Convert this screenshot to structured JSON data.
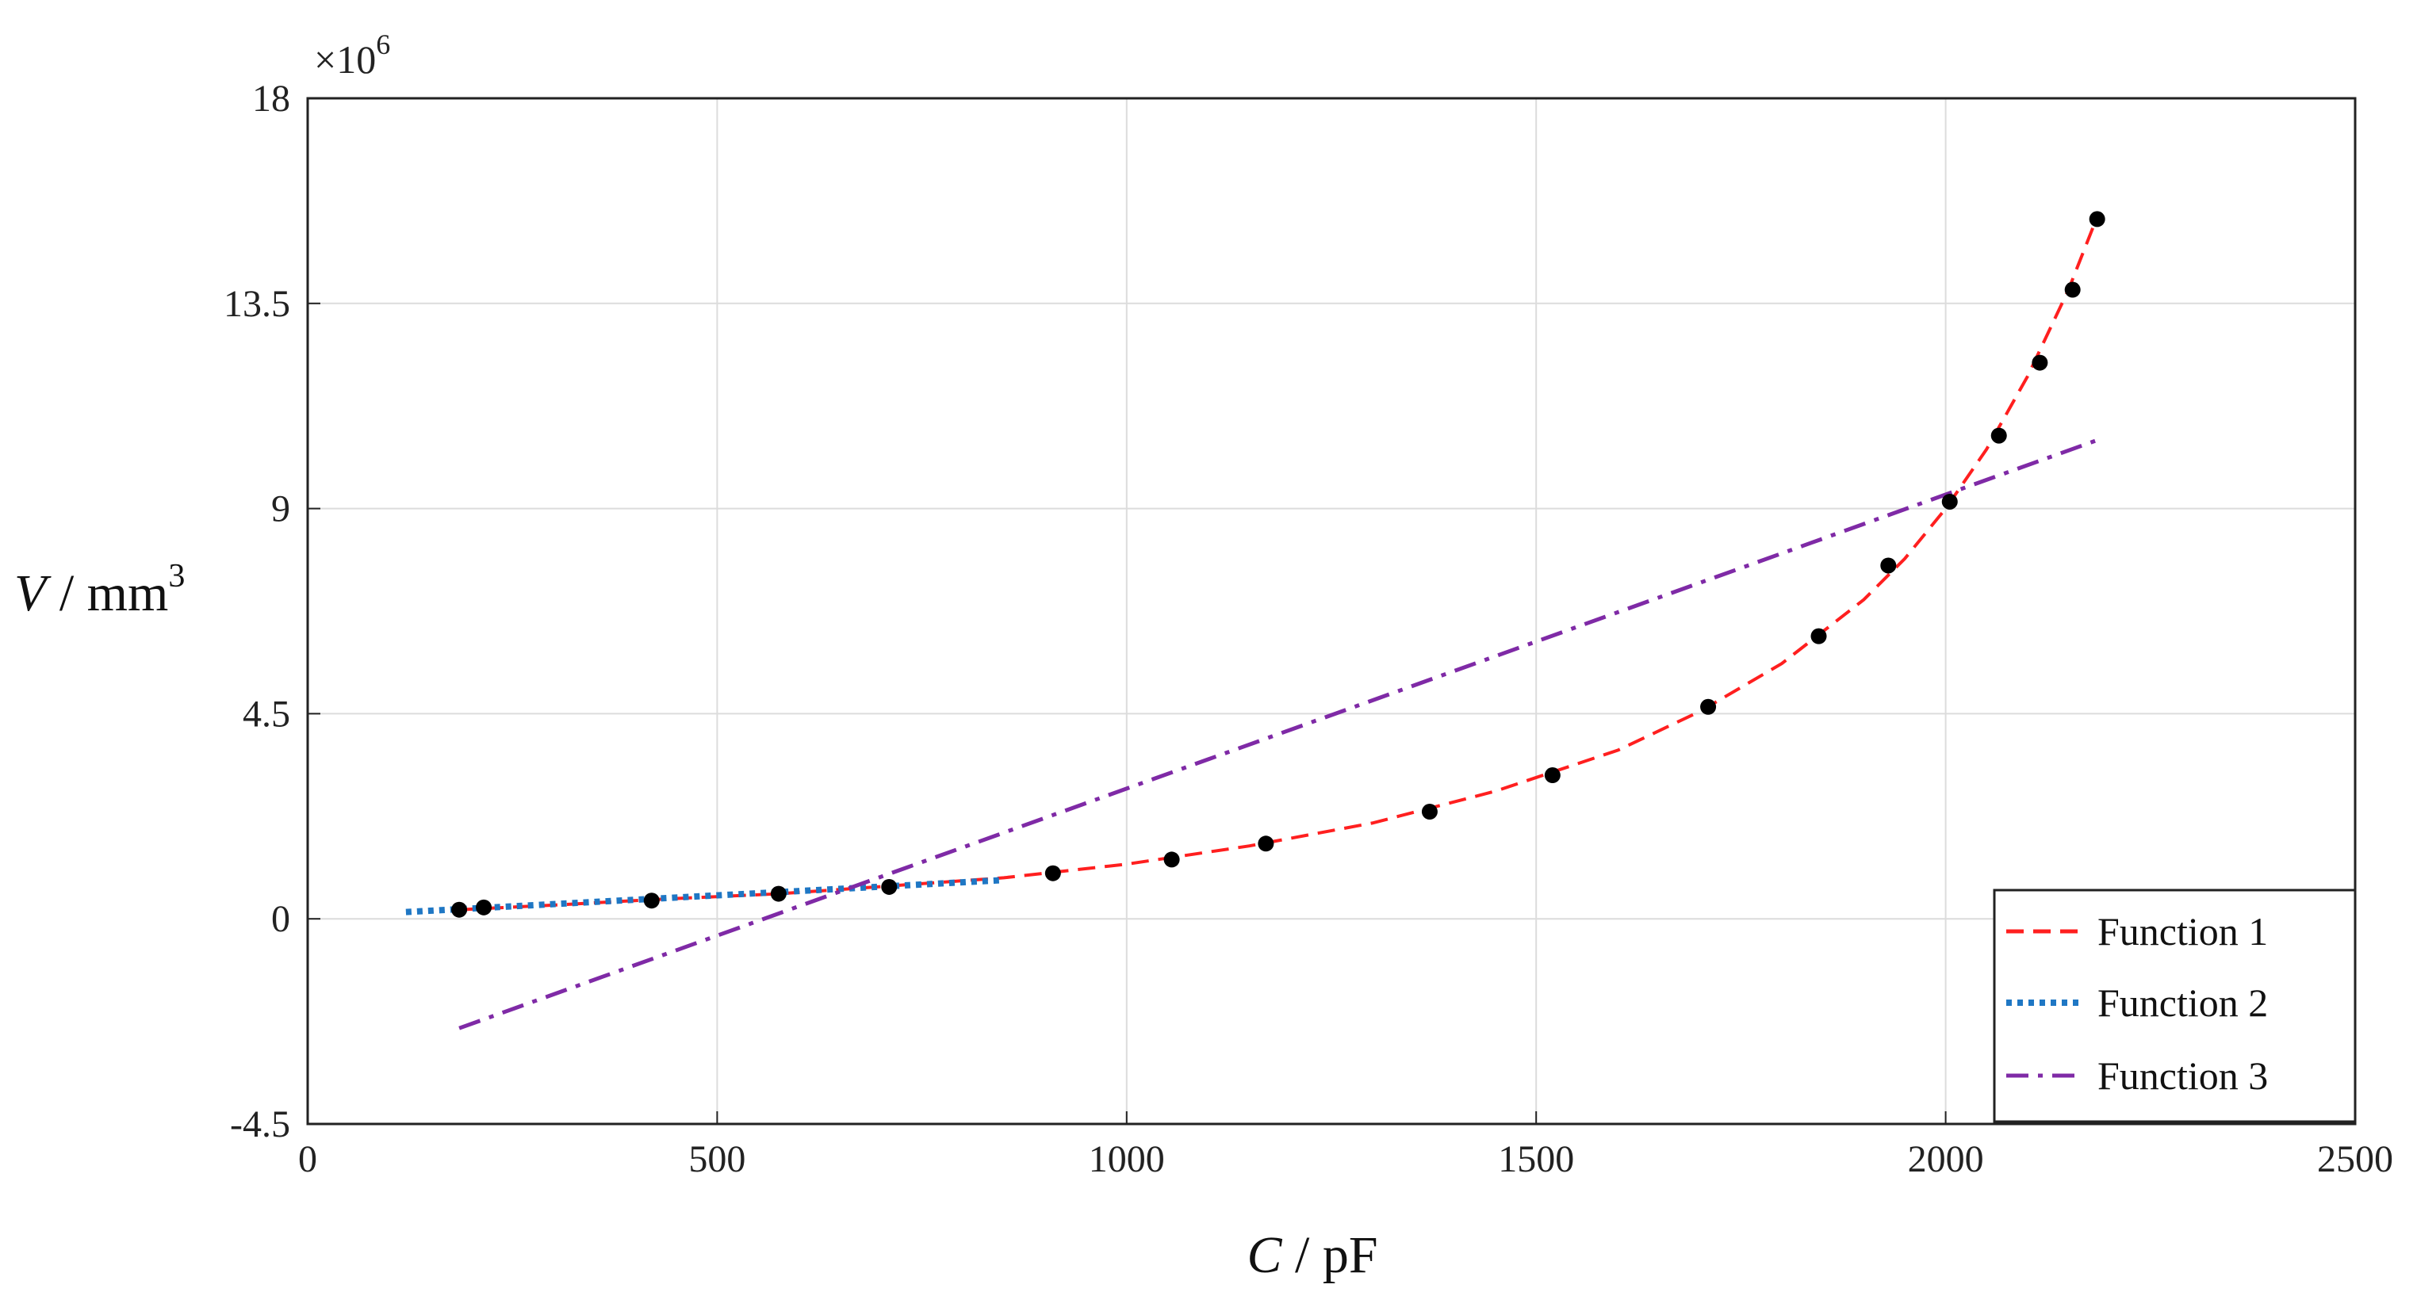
{
  "chart_data": {
    "type": "line",
    "xlabel": {
      "var": "C",
      "unit": " / pF"
    },
    "ylabel": {
      "var": "V",
      "unit": " / mm",
      "unit_sup": "3"
    },
    "y_multiplier": {
      "base": "×10",
      "exp": "6"
    },
    "xlim": [
      0,
      2500
    ],
    "ylim": [
      -4.5,
      18
    ],
    "x_ticks": [
      {
        "value": 0,
        "label": "0"
      },
      {
        "value": 500,
        "label": "500"
      },
      {
        "value": 1000,
        "label": "1000"
      },
      {
        "value": 1500,
        "label": "1500"
      },
      {
        "value": 2000,
        "label": "2000"
      },
      {
        "value": 2500,
        "label": "2500"
      }
    ],
    "y_ticks": [
      {
        "value": -4.5,
        "label": "-4.5"
      },
      {
        "value": 0,
        "label": "0"
      },
      {
        "value": 4.5,
        "label": "4.5"
      },
      {
        "value": 9,
        "label": "9"
      },
      {
        "value": 13.5,
        "label": "13.5"
      },
      {
        "value": 18,
        "label": "18"
      }
    ],
    "grid": true,
    "legend_position": "bottom-right",
    "points": {
      "color": "#000000",
      "x": [
        185,
        215,
        420,
        575,
        710,
        910,
        1055,
        1170,
        1370,
        1520,
        1710,
        1845,
        1930,
        2005,
        2065,
        2115,
        2155,
        2185
      ],
      "y": [
        0.2,
        0.25,
        0.4,
        0.55,
        0.7,
        1.0,
        1.3,
        1.65,
        2.35,
        3.15,
        4.65,
        6.2,
        7.75,
        9.15,
        10.6,
        12.2,
        13.8,
        15.35
      ]
    },
    "series": [
      {
        "name": "Function 1",
        "style": "dashed",
        "color": "#ff1f1f",
        "x": [
          185,
          300,
          420,
          575,
          710,
          850,
          1000,
          1150,
          1300,
          1450,
          1600,
          1700,
          1800,
          1900,
          1950,
          2000,
          2050,
          2100,
          2150,
          2185
        ],
        "y": [
          0.2,
          0.3,
          0.42,
          0.55,
          0.72,
          0.9,
          1.2,
          1.6,
          2.1,
          2.8,
          3.7,
          4.55,
          5.6,
          7.0,
          7.9,
          9.0,
          10.3,
          11.9,
          13.8,
          15.4
        ]
      },
      {
        "name": "Function 2",
        "style": "dotted",
        "color": "#1f77c4",
        "x": [
          120,
          850
        ],
        "y": [
          0.15,
          0.85
        ]
      },
      {
        "name": "Function 3",
        "style": "dashdot",
        "color": "#7f2aa6",
        "x": [
          185,
          2185
        ],
        "y": [
          -2.4,
          10.5
        ]
      }
    ]
  }
}
